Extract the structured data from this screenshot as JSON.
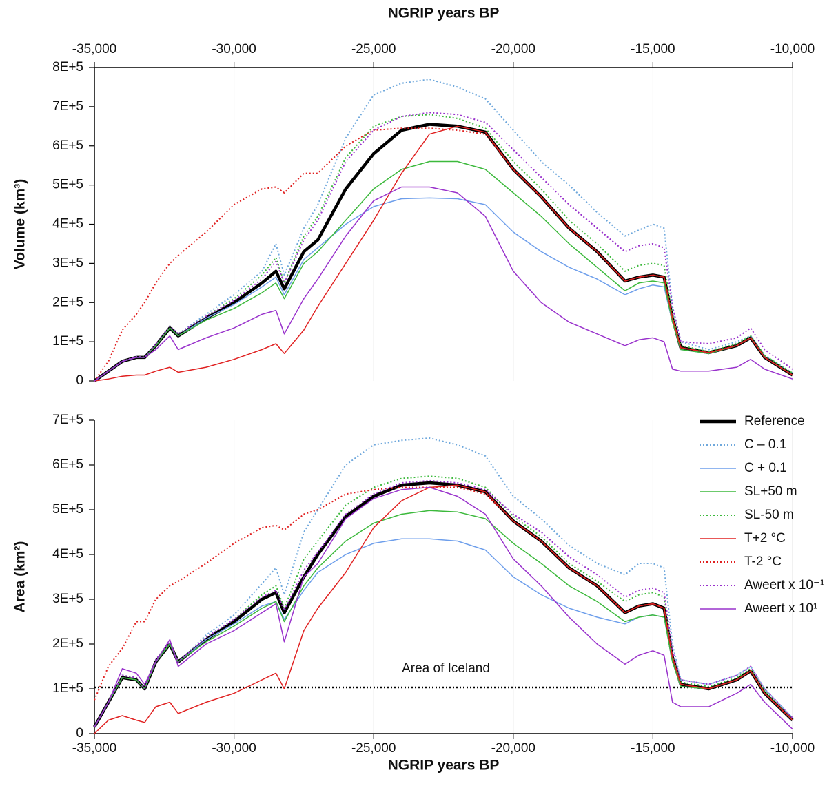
{
  "chart_data": [
    {
      "type": "line",
      "x_label": "NGRIP years BP",
      "x_axis_position": "top",
      "y_label": "Volume (km³)",
      "grid": "x",
      "xlim": [
        -35000,
        -10000
      ],
      "xticks": [
        {
          "value": -35000,
          "label": "-35,000"
        },
        {
          "value": -30000,
          "label": "-30,000"
        },
        {
          "value": -25000,
          "label": "-25,000"
        },
        {
          "value": -20000,
          "label": "-20,000"
        },
        {
          "value": -15000,
          "label": "-15,000"
        },
        {
          "value": -10000,
          "label": "-10,000"
        }
      ],
      "ylim": [
        0,
        800000
      ],
      "yticks": [
        0,
        {
          "value": 100000,
          "label": "1E+5"
        },
        {
          "value": 200000,
          "label": "2E+5"
        },
        {
          "value": 300000,
          "label": "3E+5"
        },
        {
          "value": 400000,
          "label": "4E+5"
        },
        {
          "value": 500000,
          "label": "5E+5"
        },
        {
          "value": 600000,
          "label": "6E+5"
        },
        {
          "value": 700000,
          "label": "7E+5"
        },
        {
          "value": 800000,
          "label": "8E+5"
        }
      ],
      "x": [
        -35000,
        -34500,
        -34000,
        -33500,
        -33200,
        -32800,
        -32300,
        -32000,
        -31000,
        -30000,
        -29000,
        -28500,
        -28200,
        -27500,
        -27000,
        -26000,
        -25000,
        -24000,
        -23000,
        -22000,
        -21000,
        -20000,
        -19000,
        -18000,
        -17000,
        -16000,
        -15500,
        -15000,
        -14600,
        -14300,
        -14000,
        -13000,
        -12000,
        -11500,
        -11000,
        -10000
      ],
      "series": [
        {
          "color": "#000000",
          "style": "solid",
          "linewidth": 4.5,
          "values": [
            0,
            25000,
            50000,
            60000,
            60000,
            90000,
            135000,
            115000,
            160000,
            200000,
            250000,
            280000,
            235000,
            330000,
            360000,
            490000,
            580000,
            640000,
            655000,
            650000,
            635000,
            540000,
            470000,
            390000,
            330000,
            255000,
            265000,
            270000,
            265000,
            160000,
            85000,
            72000,
            90000,
            110000,
            60000,
            15000
          ]
        },
        {
          "color": "#6fa8dc",
          "style": "dotted",
          "linewidth": 2,
          "values": [
            0,
            25000,
            50000,
            62000,
            60000,
            95000,
            140000,
            120000,
            170000,
            220000,
            280000,
            350000,
            270000,
            390000,
            450000,
            620000,
            730000,
            760000,
            770000,
            750000,
            720000,
            640000,
            560000,
            500000,
            430000,
            370000,
            385000,
            400000,
            390000,
            190000,
            100000,
            80000,
            100000,
            115000,
            65000,
            20000
          ]
        },
        {
          "color": "#6d9eeb",
          "style": "solid",
          "linewidth": 1.5,
          "values": [
            0,
            25000,
            50000,
            60000,
            60000,
            90000,
            135000,
            115000,
            160000,
            195000,
            240000,
            265000,
            220000,
            310000,
            340000,
            400000,
            445000,
            465000,
            467000,
            465000,
            450000,
            380000,
            330000,
            290000,
            260000,
            220000,
            235000,
            245000,
            240000,
            150000,
            80000,
            70000,
            90000,
            110000,
            60000,
            15000
          ]
        },
        {
          "color": "#3cb93c",
          "style": "solid",
          "linewidth": 1.5,
          "values": [
            0,
            25000,
            50000,
            60000,
            60000,
            90000,
            135000,
            115000,
            155000,
            185000,
            225000,
            250000,
            210000,
            300000,
            330000,
            410000,
            490000,
            540000,
            560000,
            560000,
            540000,
            480000,
            420000,
            350000,
            290000,
            230000,
            250000,
            255000,
            250000,
            150000,
            80000,
            70000,
            90000,
            110000,
            60000,
            15000
          ]
        },
        {
          "color": "#3cb93c",
          "style": "dotted",
          "linewidth": 2,
          "values": [
            0,
            25000,
            50000,
            62000,
            60000,
            95000,
            140000,
            120000,
            165000,
            210000,
            270000,
            315000,
            250000,
            370000,
            420000,
            570000,
            650000,
            675000,
            680000,
            670000,
            645000,
            560000,
            490000,
            410000,
            350000,
            280000,
            295000,
            300000,
            295000,
            170000,
            90000,
            75000,
            95000,
            115000,
            65000,
            20000
          ]
        },
        {
          "color": "#e02020",
          "style": "solid",
          "linewidth": 1.5,
          "values": [
            0,
            5000,
            12000,
            15000,
            15000,
            25000,
            35000,
            22000,
            35000,
            55000,
            80000,
            95000,
            70000,
            130000,
            190000,
            300000,
            410000,
            530000,
            630000,
            650000,
            635000,
            540000,
            470000,
            390000,
            330000,
            255000,
            265000,
            270000,
            265000,
            160000,
            85000,
            72000,
            90000,
            110000,
            60000,
            15000
          ]
        },
        {
          "color": "#e02020",
          "style": "dotted",
          "linewidth": 2,
          "values": [
            0,
            50000,
            130000,
            170000,
            200000,
            250000,
            300000,
            320000,
            380000,
            450000,
            490000,
            495000,
            480000,
            530000,
            530000,
            600000,
            640000,
            645000,
            645000,
            640000,
            630000,
            540000,
            470000,
            390000,
            330000,
            255000,
            265000,
            270000,
            265000,
            160000,
            85000,
            72000,
            90000,
            110000,
            60000,
            15000
          ]
        },
        {
          "color": "#9932cc",
          "style": "dotted",
          "linewidth": 2,
          "values": [
            0,
            25000,
            50000,
            62000,
            60000,
            95000,
            140000,
            120000,
            165000,
            205000,
            260000,
            305000,
            250000,
            360000,
            410000,
            560000,
            640000,
            675000,
            685000,
            680000,
            660000,
            590000,
            520000,
            450000,
            390000,
            330000,
            345000,
            350000,
            340000,
            190000,
            100000,
            95000,
            110000,
            135000,
            80000,
            30000
          ]
        },
        {
          "color": "#9932cc",
          "style": "solid",
          "linewidth": 1.5,
          "values": [
            0,
            25000,
            50000,
            60000,
            60000,
            80000,
            115000,
            80000,
            110000,
            135000,
            170000,
            180000,
            120000,
            210000,
            260000,
            370000,
            460000,
            495000,
            495000,
            480000,
            420000,
            280000,
            200000,
            150000,
            120000,
            90000,
            105000,
            110000,
            100000,
            30000,
            25000,
            25000,
            35000,
            55000,
            30000,
            5000
          ]
        }
      ]
    },
    {
      "type": "line",
      "x_label": "NGRIP years BP",
      "x_axis_position": "bottom",
      "y_label": "Area (km²)",
      "grid": "x",
      "legend": "upper right",
      "xlim": [
        -35000,
        -10000
      ],
      "xticks": [
        {
          "value": -35000,
          "label": "-35,000"
        },
        {
          "value": -30000,
          "label": "-30,000"
        },
        {
          "value": -25000,
          "label": "-25,000"
        },
        {
          "value": -20000,
          "label": "-20,000"
        },
        {
          "value": -15000,
          "label": "-15,000"
        },
        {
          "value": -10000,
          "label": "-10,000"
        }
      ],
      "ylim": [
        0,
        700000
      ],
      "yticks": [
        0,
        {
          "value": 100000,
          "label": "1E+5"
        },
        {
          "value": 200000,
          "label": "2E+5"
        },
        {
          "value": 300000,
          "label": "3E+5"
        },
        {
          "value": 400000,
          "label": "4E+5"
        },
        {
          "value": 500000,
          "label": "5E+5"
        },
        {
          "value": 600000,
          "label": "6E+5"
        },
        {
          "value": 700000,
          "label": "7E+5"
        }
      ],
      "reference_line": {
        "label": "Area of Iceland",
        "value": 103000
      },
      "x": [
        -35000,
        -34500,
        -34000,
        -33500,
        -33200,
        -32800,
        -32300,
        -32000,
        -31000,
        -30000,
        -29000,
        -28500,
        -28200,
        -27500,
        -27000,
        -26000,
        -25000,
        -24000,
        -23000,
        -22000,
        -21000,
        -20000,
        -19000,
        -18000,
        -17000,
        -16000,
        -15500,
        -15000,
        -14600,
        -14300,
        -14000,
        -13000,
        -12000,
        -11500,
        -11000,
        -10000
      ],
      "series": [
        {
          "name": "Reference",
          "color": "#000000",
          "style": "solid",
          "linewidth": 4.5,
          "values": [
            15000,
            70000,
            125000,
            120000,
            100000,
            160000,
            200000,
            160000,
            210000,
            250000,
            300000,
            315000,
            270000,
            350000,
            400000,
            485000,
            530000,
            555000,
            560000,
            555000,
            540000,
            475000,
            430000,
            370000,
            330000,
            270000,
            285000,
            290000,
            280000,
            170000,
            110000,
            100000,
            120000,
            140000,
            90000,
            30000
          ]
        },
        {
          "name": "C – 0.1",
          "color": "#6fa8dc",
          "style": "dotted",
          "linewidth": 2,
          "values": [
            15000,
            70000,
            130000,
            125000,
            100000,
            165000,
            205000,
            160000,
            220000,
            265000,
            335000,
            370000,
            310000,
            450000,
            500000,
            600000,
            645000,
            655000,
            660000,
            645000,
            620000,
            530000,
            480000,
            420000,
            380000,
            355000,
            380000,
            380000,
            370000,
            200000,
            120000,
            110000,
            130000,
            150000,
            100000,
            35000
          ]
        },
        {
          "name": "C + 0.1",
          "color": "#6d9eeb",
          "style": "solid",
          "linewidth": 1.5,
          "values": [
            15000,
            70000,
            125000,
            120000,
            100000,
            160000,
            200000,
            160000,
            210000,
            245000,
            285000,
            295000,
            255000,
            320000,
            360000,
            400000,
            425000,
            435000,
            435000,
            430000,
            410000,
            350000,
            310000,
            280000,
            260000,
            245000,
            260000,
            265000,
            260000,
            160000,
            105000,
            100000,
            120000,
            140000,
            90000,
            30000
          ]
        },
        {
          "name": "SL+50 m",
          "color": "#3cb93c",
          "style": "solid",
          "linewidth": 1.5,
          "values": [
            15000,
            70000,
            125000,
            120000,
            100000,
            160000,
            200000,
            160000,
            205000,
            240000,
            280000,
            295000,
            250000,
            330000,
            370000,
            430000,
            470000,
            490000,
            498000,
            495000,
            480000,
            425000,
            380000,
            330000,
            295000,
            250000,
            260000,
            265000,
            260000,
            160000,
            105000,
            100000,
            120000,
            140000,
            90000,
            30000
          ]
        },
        {
          "name": "SL-50 m",
          "color": "#3cb93c",
          "style": "dotted",
          "linewidth": 2,
          "values": [
            15000,
            70000,
            130000,
            125000,
            100000,
            165000,
            205000,
            160000,
            215000,
            255000,
            310000,
            330000,
            280000,
            390000,
            430000,
            510000,
            550000,
            570000,
            575000,
            570000,
            550000,
            485000,
            440000,
            380000,
            340000,
            295000,
            310000,
            315000,
            305000,
            175000,
            115000,
            105000,
            125000,
            145000,
            95000,
            35000
          ]
        },
        {
          "name": "T+2 °C",
          "color": "#e02020",
          "style": "solid",
          "linewidth": 1.5,
          "values": [
            0,
            30000,
            40000,
            30000,
            25000,
            60000,
            70000,
            45000,
            70000,
            90000,
            120000,
            135000,
            100000,
            230000,
            280000,
            360000,
            460000,
            520000,
            550000,
            555000,
            540000,
            475000,
            430000,
            370000,
            330000,
            270000,
            285000,
            290000,
            280000,
            170000,
            110000,
            100000,
            120000,
            140000,
            90000,
            30000
          ]
        },
        {
          "name": "T-2 °C",
          "color": "#e02020",
          "style": "dotted",
          "linewidth": 2,
          "values": [
            75000,
            150000,
            190000,
            250000,
            250000,
            300000,
            330000,
            340000,
            380000,
            425000,
            460000,
            465000,
            455000,
            490000,
            500000,
            535000,
            545000,
            550000,
            550000,
            550000,
            535000,
            475000,
            430000,
            370000,
            330000,
            270000,
            285000,
            290000,
            280000,
            170000,
            110000,
            100000,
            120000,
            140000,
            90000,
            30000
          ]
        },
        {
          "name": "Aweert x 10⁻¹",
          "color": "#9932cc",
          "style": "dotted",
          "linewidth": 2,
          "values": [
            15000,
            70000,
            130000,
            125000,
            100000,
            165000,
            205000,
            160000,
            215000,
            255000,
            305000,
            320000,
            275000,
            365000,
            405000,
            490000,
            535000,
            560000,
            565000,
            560000,
            545000,
            490000,
            450000,
            395000,
            355000,
            305000,
            320000,
            325000,
            315000,
            185000,
            120000,
            110000,
            130000,
            150000,
            100000,
            35000
          ]
        },
        {
          "name": "Aweert x 10¹",
          "color": "#9932cc",
          "style": "solid",
          "linewidth": 1.5,
          "values": [
            15000,
            70000,
            145000,
            135000,
            110000,
            160000,
            210000,
            150000,
            200000,
            230000,
            270000,
            290000,
            205000,
            350000,
            380000,
            480000,
            525000,
            545000,
            550000,
            530000,
            490000,
            390000,
            330000,
            260000,
            200000,
            155000,
            175000,
            185000,
            175000,
            70000,
            60000,
            60000,
            90000,
            110000,
            70000,
            10000
          ]
        }
      ]
    }
  ]
}
